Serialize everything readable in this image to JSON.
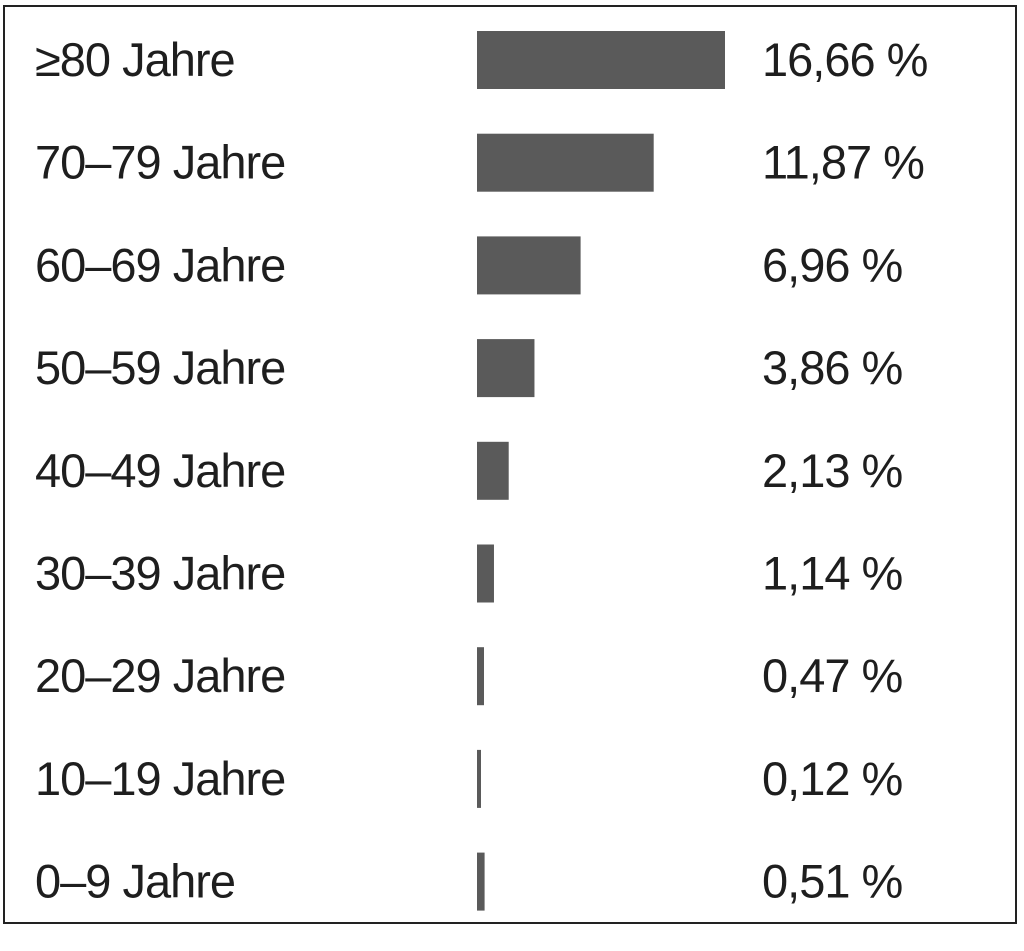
{
  "chart_data": {
    "type": "bar",
    "orientation": "horizontal",
    "categories": [
      "≥80 Jahre",
      "70–79 Jahre",
      "60–69 Jahre",
      "50–59 Jahre",
      "40–49 Jahre",
      "30–39 Jahre",
      "20–29 Jahre",
      "10–19 Jahre",
      "0–9 Jahre"
    ],
    "values": [
      16.66,
      11.87,
      6.96,
      3.86,
      2.13,
      1.14,
      0.47,
      0.12,
      0.51
    ],
    "value_labels": [
      "16,66 %",
      "11,87 %",
      "6,96 %",
      "3,86 %",
      "2,13 %",
      "1,14 %",
      "0,47 %",
      "0,12 %",
      "0,51 %"
    ],
    "title": "",
    "xlabel": "",
    "ylabel": "",
    "xlim": [
      0,
      16.66
    ],
    "grid": false,
    "legend": "none",
    "bar_color": "#5a5a5a",
    "text_color": "#1e1e1e"
  }
}
